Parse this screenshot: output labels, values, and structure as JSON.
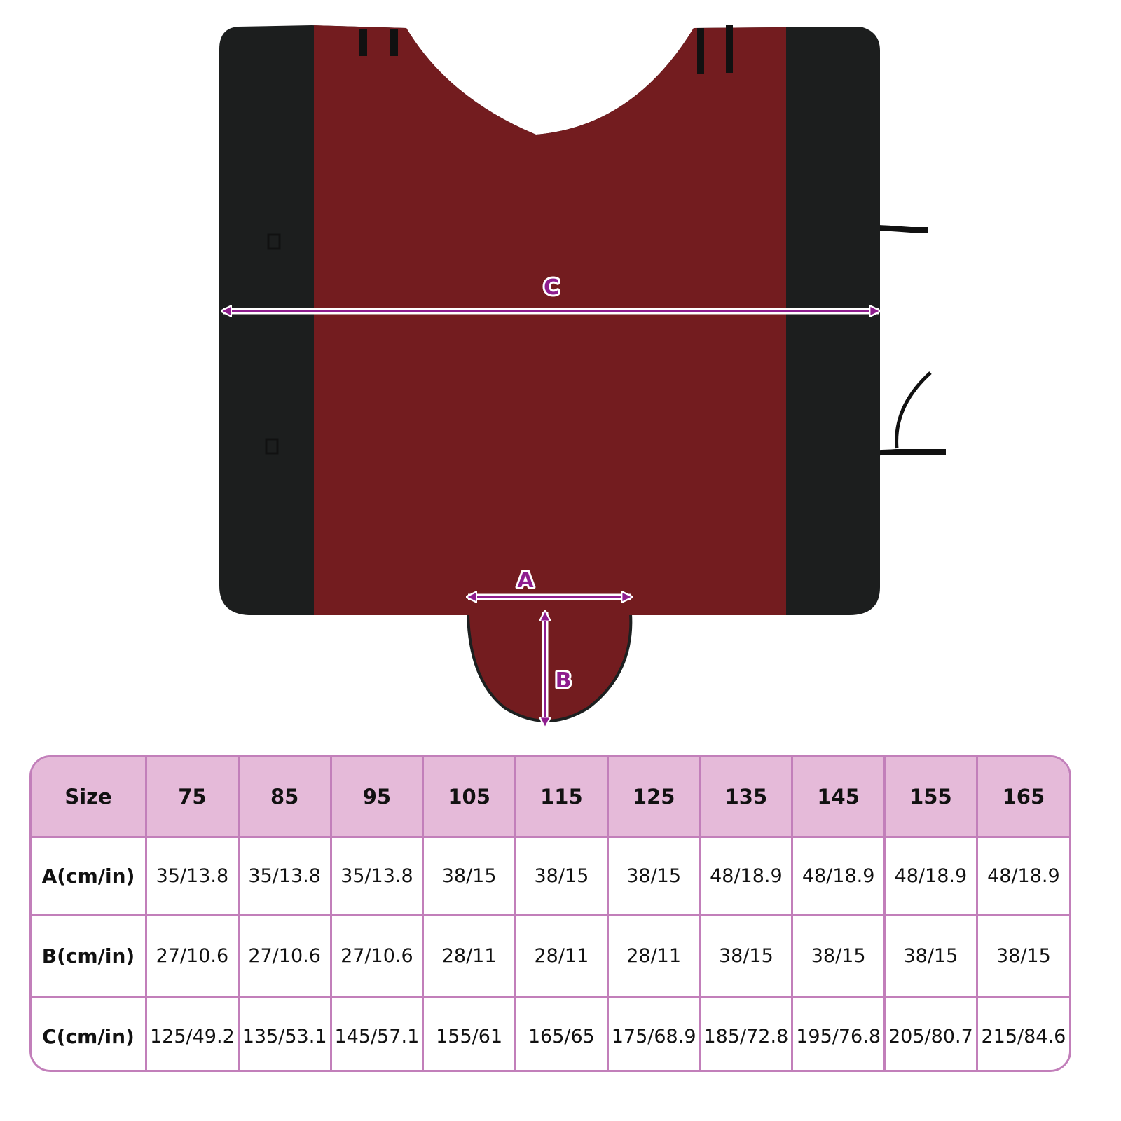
{
  "colors": {
    "accent": "#8e1d8e",
    "header_bg": "#e5bad9",
    "border": "#c27fba",
    "rug_red": "#731c1f",
    "rug_black": "#1c1e1e"
  },
  "figure": {
    "labels": {
      "a": "A",
      "b": "B",
      "c": "C"
    }
  },
  "table": {
    "header": [
      "Size",
      "75",
      "85",
      "95",
      "105",
      "115",
      "125",
      "135",
      "145",
      "155",
      "165"
    ],
    "rows": [
      {
        "label": "A(cm/in)",
        "values": [
          "35/13.8",
          "35/13.8",
          "35/13.8",
          "38/15",
          "38/15",
          "38/15",
          "48/18.9",
          "48/18.9",
          "48/18.9",
          "48/18.9"
        ]
      },
      {
        "label": "B(cm/in)",
        "values": [
          "27/10.6",
          "27/10.6",
          "27/10.6",
          "28/11",
          "28/11",
          "28/11",
          "38/15",
          "38/15",
          "38/15",
          "38/15"
        ]
      },
      {
        "label": "C(cm/in)",
        "values": [
          "125/49.2",
          "135/53.1",
          "145/57.1",
          "155/61",
          "165/65",
          "175/68.9",
          "185/72.8",
          "195/76.8",
          "205/80.7",
          "215/84.6"
        ]
      }
    ]
  }
}
